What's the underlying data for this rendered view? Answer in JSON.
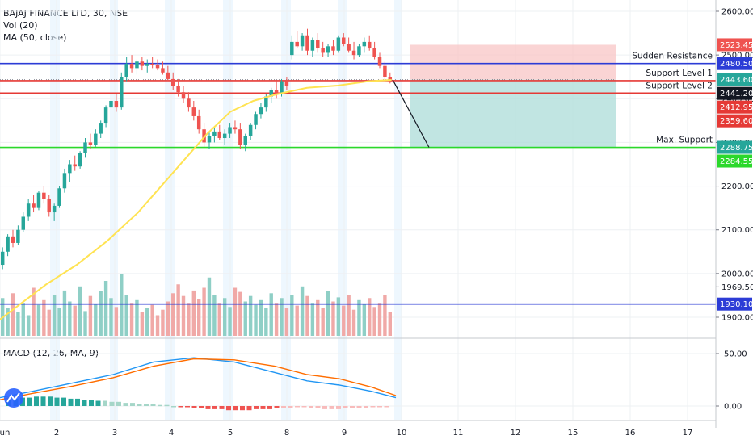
{
  "legend": {
    "symbol": "BAJAJ FINANCE LTD, 30, NSE",
    "vol": "Vol (20)",
    "ma": "MA (50, close)",
    "macd": "MACD (12, 26, MA, 9)"
  },
  "chart_data": {
    "type": "candlestick",
    "price_axis": {
      "ticks": [
        2600,
        2500,
        2400,
        2300,
        2200,
        2100,
        2000,
        1969.5,
        1900
      ],
      "tick_labels": [
        "2600.00",
        "2500.00",
        "2400.00",
        "2300.00",
        "2200.00",
        "2100.00",
        "2000.00",
        "1969.50",
        "1900.00"
      ]
    },
    "macd_axis": {
      "ticks": [
        50,
        0
      ],
      "tick_labels": [
        "50.00",
        "0.00"
      ]
    },
    "x_axis": {
      "ticks": [
        1,
        2,
        3,
        4,
        5,
        8,
        9,
        10,
        11,
        12,
        15,
        16,
        17
      ],
      "tick_labels": [
        "un",
        "2",
        "3",
        "4",
        "5",
        "8",
        "9",
        "10",
        "11",
        "12",
        "15",
        "16",
        "17"
      ]
    },
    "levels": [
      {
        "label": "Sudden Resistance",
        "value": 2480.5,
        "color": "#2c3cd6"
      },
      {
        "label": "Support Level 1",
        "value": 2441.2,
        "color": "#e53935"
      },
      {
        "label": "Support Level 2",
        "value": 2412.95,
        "color": "#e53935"
      },
      {
        "label": "Max. Support",
        "value": 2288.75,
        "color": "#2bd82b"
      },
      {
        "label": "",
        "value": 1930.1,
        "color": "#2c3cd6"
      }
    ],
    "price_tags": [
      {
        "text": "2600.00",
        "value": 2600,
        "bg": ""
      },
      {
        "text": "2523.45",
        "value": 2523.45,
        "bg": "#ef5350"
      },
      {
        "text": "2480.50",
        "value": 2480.5,
        "bg": "#2c3cd6"
      },
      {
        "text": "2443.60",
        "value": 2443.6,
        "bg": "#26a69a"
      },
      {
        "text": "2441.20",
        "value": 2441.2,
        "bg": "#131722"
      },
      {
        "text": "2412.95",
        "value": 2412.95,
        "bg": "#e53935"
      },
      {
        "text": "2359.60",
        "value": 2359.6,
        "bg": "#e53935"
      },
      {
        "text": "2288.75",
        "value": 2288.75,
        "bg": "#26a69a"
      },
      {
        "text": "2284.55",
        "value": 2284.55,
        "bg": "#2bd82b"
      },
      {
        "text": "1930.10",
        "value": 1930.1,
        "bg": "#2c3cd6"
      }
    ],
    "ohlc": [
      [
        2020,
        2060,
        2010,
        2050
      ],
      [
        2050,
        2090,
        2040,
        2085
      ],
      [
        2085,
        2100,
        2060,
        2070
      ],
      [
        2070,
        2110,
        2065,
        2100
      ],
      [
        2100,
        2140,
        2095,
        2130
      ],
      [
        2130,
        2170,
        2120,
        2160
      ],
      [
        2160,
        2180,
        2140,
        2150
      ],
      [
        2150,
        2190,
        2145,
        2185
      ],
      [
        2185,
        2200,
        2160,
        2170
      ],
      [
        2170,
        2180,
        2130,
        2140
      ],
      [
        2140,
        2160,
        2120,
        2155
      ],
      [
        2155,
        2200,
        2150,
        2195
      ],
      [
        2195,
        2240,
        2185,
        2230
      ],
      [
        2230,
        2260,
        2210,
        2250
      ],
      [
        2250,
        2270,
        2235,
        2245
      ],
      [
        2245,
        2280,
        2240,
        2275
      ],
      [
        2275,
        2310,
        2265,
        2300
      ],
      [
        2300,
        2320,
        2285,
        2295
      ],
      [
        2295,
        2330,
        2290,
        2320
      ],
      [
        2320,
        2350,
        2310,
        2345
      ],
      [
        2345,
        2385,
        2335,
        2380
      ],
      [
        2380,
        2400,
        2360,
        2395
      ],
      [
        2395,
        2410,
        2370,
        2380
      ],
      [
        2380,
        2460,
        2375,
        2450
      ],
      [
        2450,
        2495,
        2440,
        2480
      ],
      [
        2480,
        2500,
        2460,
        2470
      ],
      [
        2470,
        2490,
        2455,
        2485
      ],
      [
        2485,
        2495,
        2465,
        2475
      ],
      [
        2475,
        2490,
        2460,
        2480
      ],
      [
        2480,
        2495,
        2470,
        2478
      ],
      [
        2478,
        2490,
        2465,
        2470
      ],
      [
        2470,
        2485,
        2455,
        2460
      ],
      [
        2460,
        2475,
        2440,
        2445
      ],
      [
        2445,
        2460,
        2420,
        2430
      ],
      [
        2430,
        2445,
        2405,
        2415
      ],
      [
        2415,
        2430,
        2390,
        2400
      ],
      [
        2400,
        2415,
        2370,
        2380
      ],
      [
        2380,
        2395,
        2350,
        2360
      ],
      [
        2360,
        2375,
        2320,
        2330
      ],
      [
        2330,
        2345,
        2290,
        2300
      ],
      [
        2300,
        2325,
        2285,
        2315
      ],
      [
        2315,
        2335,
        2300,
        2325
      ],
      [
        2325,
        2340,
        2305,
        2310
      ],
      [
        2310,
        2330,
        2295,
        2320
      ],
      [
        2320,
        2345,
        2310,
        2335
      ],
      [
        2335,
        2350,
        2320,
        2330
      ],
      [
        2330,
        2345,
        2285,
        2295
      ],
      [
        2295,
        2320,
        2280,
        2315
      ],
      [
        2315,
        2345,
        2305,
        2340
      ],
      [
        2340,
        2370,
        2330,
        2365
      ],
      [
        2365,
        2390,
        2355,
        2380
      ],
      [
        2380,
        2410,
        2370,
        2405
      ],
      [
        2405,
        2425,
        2390,
        2420
      ],
      [
        2420,
        2440,
        2400,
        2410
      ],
      [
        2410,
        2445,
        2405,
        2440
      ],
      [
        2440,
        2450,
        2420,
        2430
      ],
      [
        2500,
        2545,
        2490,
        2530
      ],
      [
        2530,
        2555,
        2515,
        2520
      ],
      [
        2520,
        2550,
        2510,
        2545
      ],
      [
        2545,
        2560,
        2500,
        2510
      ],
      [
        2510,
        2540,
        2495,
        2535
      ],
      [
        2535,
        2550,
        2505,
        2515
      ],
      [
        2515,
        2530,
        2495,
        2505
      ],
      [
        2505,
        2525,
        2495,
        2520
      ],
      [
        2520,
        2535,
        2500,
        2510
      ],
      [
        2510,
        2545,
        2505,
        2540
      ],
      [
        2540,
        2550,
        2520,
        2525
      ],
      [
        2525,
        2540,
        2505,
        2510
      ],
      [
        2510,
        2530,
        2490,
        2500
      ],
      [
        2500,
        2525,
        2495,
        2520
      ],
      [
        2520,
        2540,
        2505,
        2530
      ],
      [
        2530,
        2545,
        2510,
        2515
      ],
      [
        2515,
        2530,
        2490,
        2495
      ],
      [
        2495,
        2505,
        2470,
        2475
      ],
      [
        2475,
        2485,
        2445,
        2450
      ],
      [
        2450,
        2460,
        2435,
        2443.6
      ]
    ],
    "ma_line": [
      [
        0,
        1895
      ],
      [
        15,
        1935
      ],
      [
        30,
        1975
      ],
      [
        50,
        2020
      ],
      [
        70,
        2075
      ],
      [
        90,
        2140
      ],
      [
        105,
        2200
      ],
      [
        120,
        2260
      ],
      [
        135,
        2320
      ],
      [
        150,
        2370
      ],
      [
        165,
        2395
      ],
      [
        180,
        2410
      ],
      [
        200,
        2425
      ],
      [
        220,
        2430
      ],
      [
        240,
        2440
      ],
      [
        255,
        2443
      ]
    ],
    "trade_box": {
      "x0": 508,
      "x1": 762,
      "entry": 2443.6,
      "target": 2288.75,
      "stop": 2523.45,
      "profit_color": "#b2dfdb",
      "loss_color": "#f8c5c5"
    },
    "projection": {
      "from": [
        486,
        2443.6
      ],
      "to": [
        531,
        2288.75
      ]
    },
    "volume": [
      55,
      40,
      62,
      35,
      48,
      30,
      70,
      45,
      52,
      38,
      60,
      41,
      66,
      50,
      44,
      72,
      36,
      58,
      47,
      65,
      80,
      55,
      42,
      90,
      60,
      48,
      52,
      35,
      40,
      45,
      30,
      38,
      50,
      62,
      75,
      58,
      48,
      66,
      54,
      70,
      85,
      60,
      48,
      55,
      42,
      70,
      64,
      50,
      58,
      45,
      52,
      40,
      62,
      48,
      55,
      40,
      60,
      44,
      72,
      58,
      48,
      52,
      40,
      65,
      50,
      56,
      44,
      60,
      38,
      52,
      46,
      55,
      42,
      48,
      60,
      35
    ],
    "macd_series": [
      {
        "name": "MACD",
        "color": "#2196f3",
        "points": [
          [
            0,
            8
          ],
          [
            40,
            14
          ],
          [
            90,
            22
          ],
          [
            140,
            30
          ],
          [
            190,
            42
          ],
          [
            240,
            46
          ],
          [
            290,
            42
          ],
          [
            340,
            32
          ],
          [
            380,
            24
          ],
          [
            420,
            20
          ],
          [
            460,
            14
          ],
          [
            490,
            8
          ]
        ]
      },
      {
        "name": "Signal",
        "color": "#ff6d00",
        "points": [
          [
            0,
            6
          ],
          [
            40,
            12
          ],
          [
            90,
            19
          ],
          [
            140,
            27
          ],
          [
            190,
            38
          ],
          [
            240,
            45
          ],
          [
            290,
            44
          ],
          [
            340,
            38
          ],
          [
            380,
            30
          ],
          [
            420,
            26
          ],
          [
            460,
            18
          ],
          [
            490,
            10
          ]
        ]
      }
    ],
    "macd_hist": [
      6,
      7,
      8,
      8,
      9,
      9,
      9,
      8,
      8,
      7,
      7,
      6,
      6,
      5,
      5,
      4,
      4,
      3,
      3,
      2,
      2,
      2,
      1,
      1,
      0,
      -1,
      -1,
      -2,
      -2,
      -3,
      -3,
      -3,
      -4,
      -4,
      -4,
      -4,
      -3,
      -3,
      -3,
      -2,
      -2,
      -2,
      -1,
      -1,
      -2,
      -2,
      -3,
      -3,
      -3,
      -2,
      -2,
      -2,
      -2,
      -1,
      -1,
      -1
    ]
  }
}
